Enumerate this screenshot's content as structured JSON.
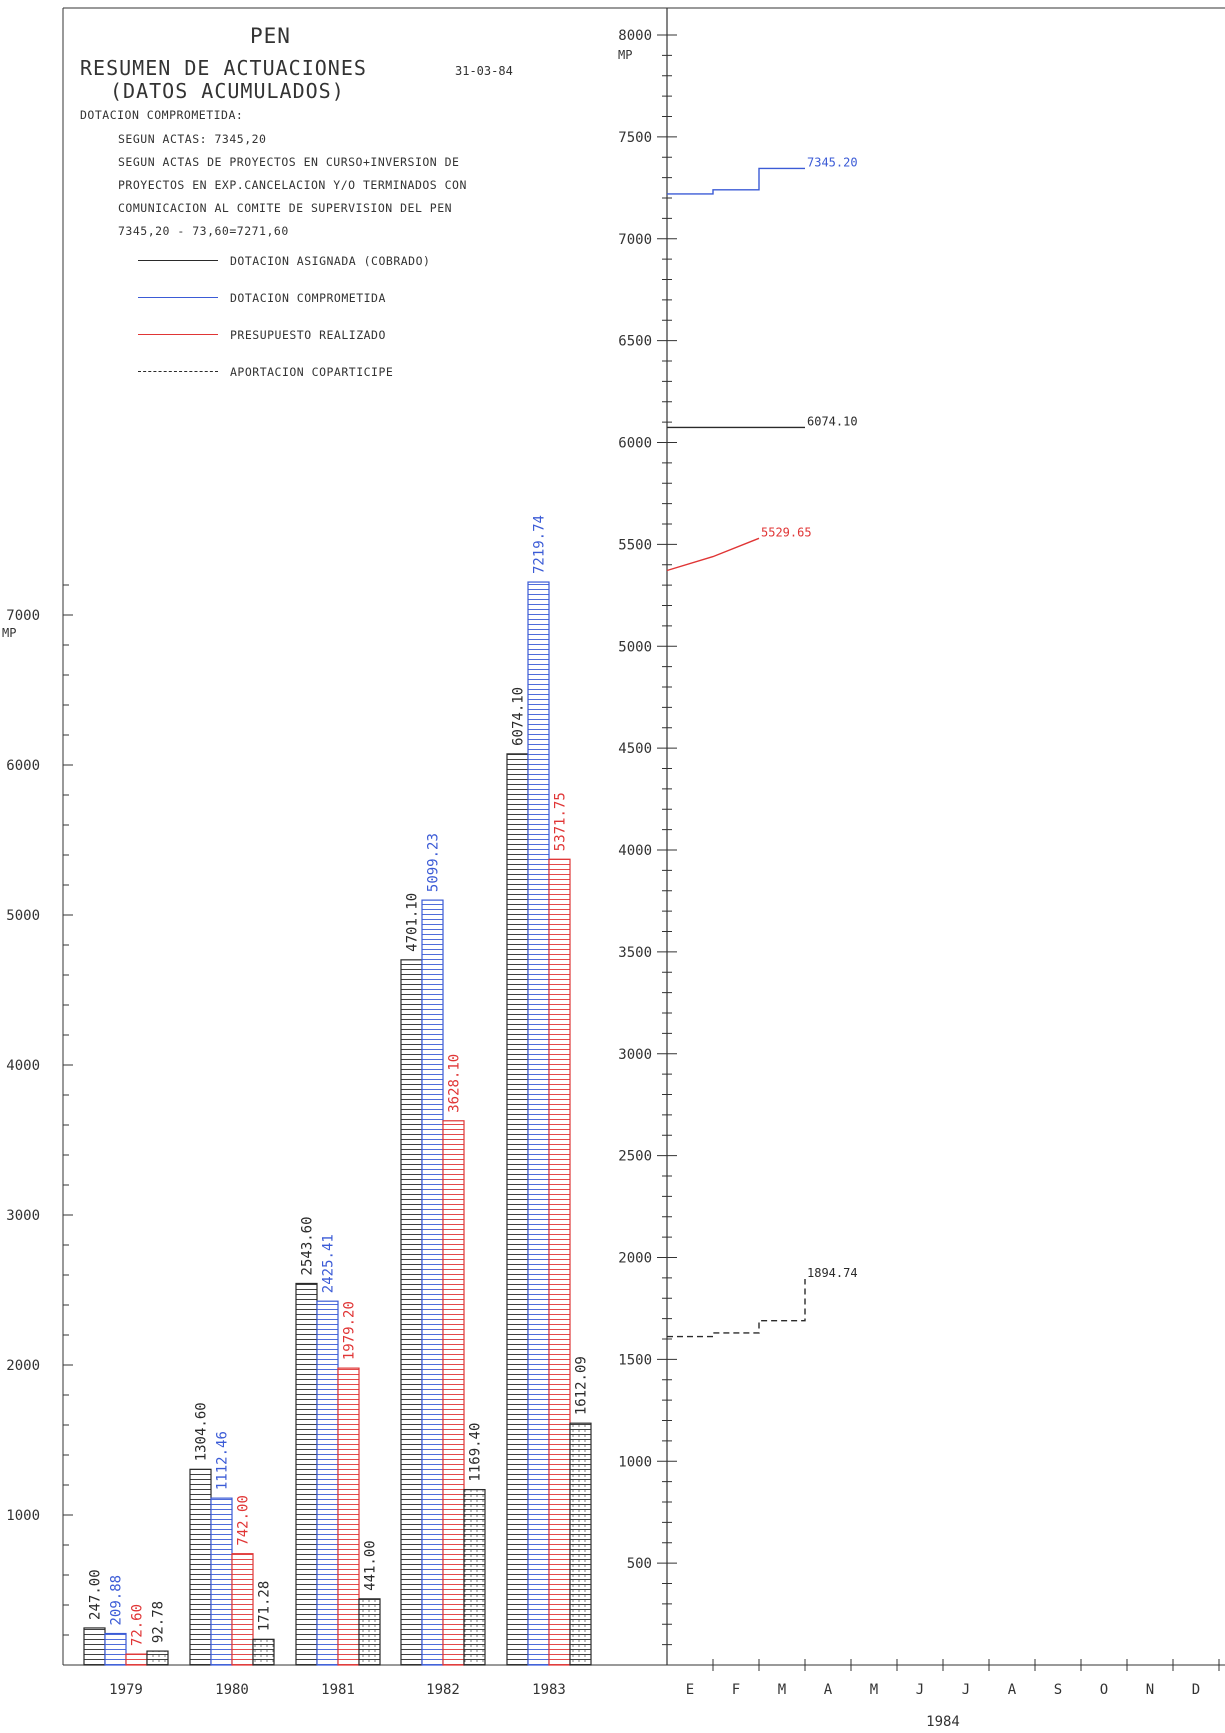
{
  "header": {
    "title": "PEN",
    "subtitle_line1": "RESUMEN DE ACTUACIONES",
    "subtitle_line2": "(DATOS ACUMULADOS)",
    "date": "31-03-84",
    "notes": [
      "DOTACION COMPROMETIDA:",
      "SEGUN ACTAS: 7345,20",
      "SEGUN ACTAS DE PROYECTOS EN CURSO+INVERSION DE",
      "PROYECTOS EN EXP.CANCELACION Y/O TERMINADOS CON",
      "COMUNICACION AL COMITE DE SUPERVISION DEL PEN",
      "7345,20 - 73,60=7271,60"
    ]
  },
  "legend": [
    {
      "label": "DOTACION ASIGNADA (COBRADO)",
      "color": "#2a2a2a",
      "style": "solid"
    },
    {
      "label": "DOTACION COMPROMETIDA",
      "color": "#3b5bd6",
      "style": "solid"
    },
    {
      "label": "PRESUPUESTO REALIZADO",
      "color": "#e03535",
      "style": "solid"
    },
    {
      "label": "APORTACION COPARTICIPE",
      "color": "#2a2a2a",
      "style": "dashed"
    }
  ],
  "chart_data": [
    {
      "type": "bar",
      "categories": [
        "1979",
        "1980",
        "1981",
        "1982",
        "1983"
      ],
      "ylabel": "MP",
      "ylim": [
        0,
        7000
      ],
      "yticks": [
        1000,
        2000,
        3000,
        4000,
        5000,
        6000,
        7000
      ],
      "series": [
        {
          "name": "DOTACION ASIGNADA (COBRADO)",
          "color": "#2a2a2a",
          "values": [
            247.0,
            1304.6,
            2543.6,
            4701.1,
            6074.1
          ],
          "labels": [
            "247.00",
            "1304.60",
            "2543.60",
            "4701.10",
            "6074.10"
          ]
        },
        {
          "name": "DOTACION COMPROMETIDA",
          "color": "#3b5bd6",
          "values": [
            209.88,
            1112.46,
            2425.41,
            5099.23,
            7219.74
          ],
          "labels": [
            "209.88",
            "1112.46",
            "2425.41",
            "5099.23",
            "7219.74"
          ]
        },
        {
          "name": "PRESUPUESTO REALIZADO",
          "color": "#e03535",
          "values": [
            72.6,
            742.0,
            1979.2,
            3628.1,
            5371.75
          ],
          "labels": [
            "72.60",
            "742.00",
            "1979.20",
            "3628.10",
            "5371.75"
          ]
        },
        {
          "name": "APORTACION COPARTICIPE",
          "color": "#2a2a2a",
          "values": [
            92.78,
            171.28,
            441.0,
            1169.4,
            1612.09
          ],
          "labels": [
            "92.78",
            "171.28",
            "441.00",
            "1169.40",
            "1612.09"
          ]
        }
      ]
    },
    {
      "type": "line",
      "xlabel": "1984",
      "categories": [
        "E",
        "F",
        "M",
        "A",
        "M",
        "J",
        "J",
        "A",
        "S",
        "O",
        "N",
        "D"
      ],
      "ylabel": "MP",
      "ylim": [
        0,
        8000
      ],
      "yticks": [
        500,
        1000,
        1500,
        2000,
        2500,
        3000,
        3500,
        4000,
        4500,
        5000,
        5500,
        6000,
        6500,
        7000,
        7500,
        8000
      ],
      "series": [
        {
          "name": "DOTACION COMPROMETIDA",
          "color": "#3b5bd6",
          "style": "step",
          "points": [
            [
              0,
              7219.74
            ],
            [
              1,
              7240
            ],
            [
              2,
              7345.2
            ],
            [
              3,
              7345.2
            ]
          ],
          "end_label": "7345.20"
        },
        {
          "name": "DOTACION ASIGNADA (COBRADO)",
          "color": "#2a2a2a",
          "style": "step",
          "points": [
            [
              0,
              6074.1
            ],
            [
              3,
              6074.1
            ]
          ],
          "end_label": "6074.10"
        },
        {
          "name": "PRESUPUESTO REALIZADO",
          "color": "#e03535",
          "style": "line",
          "points": [
            [
              0,
              5371.75
            ],
            [
              1,
              5440
            ],
            [
              2,
              5529.65
            ]
          ],
          "end_label": "5529.65"
        },
        {
          "name": "APORTACION COPARTICIPE",
          "color": "#2a2a2a",
          "style": "step-dashed",
          "points": [
            [
              0,
              1612.09
            ],
            [
              1,
              1630
            ],
            [
              2,
              1690
            ],
            [
              3,
              1894.74
            ]
          ],
          "end_label": "1894.74"
        }
      ]
    }
  ]
}
